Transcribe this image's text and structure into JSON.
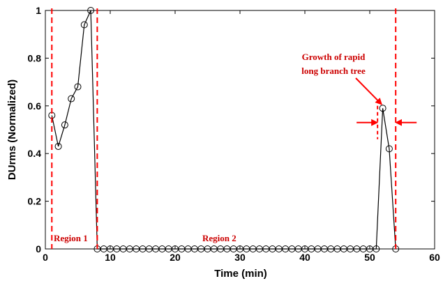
{
  "chart_data": {
    "type": "line",
    "title": "",
    "xlabel": "Time (min)",
    "ylabel": "DUrms (Normalized)",
    "xlim": [
      0,
      60
    ],
    "ylim": [
      0,
      1
    ],
    "xticks": [
      "0",
      "10",
      "20",
      "30",
      "40",
      "50",
      "60"
    ],
    "yticks": [
      "0",
      "0.2",
      "0.4",
      "0.6",
      "0.8",
      "1"
    ],
    "xtick_values": [
      0,
      10,
      20,
      30,
      40,
      50,
      60
    ],
    "ytick_values": [
      0,
      0.2,
      0.4,
      0.6,
      0.8,
      1
    ],
    "grid": false,
    "series": [
      {
        "x": [
          1,
          2,
          3,
          4,
          5,
          6,
          7,
          8,
          9,
          10,
          11,
          12,
          13,
          14,
          15,
          16,
          17,
          18,
          19,
          20,
          21,
          22,
          23,
          24,
          25,
          26,
          27,
          28,
          29,
          30,
          31,
          32,
          33,
          34,
          35,
          36,
          37,
          38,
          39,
          40,
          41,
          42,
          43,
          44,
          45,
          46,
          47,
          48,
          49,
          50,
          51,
          52,
          53,
          54
        ],
        "y": [
          0.56,
          0.43,
          0.52,
          0.63,
          0.68,
          0.94,
          1.0,
          0,
          0,
          0,
          0,
          0,
          0,
          0,
          0,
          0,
          0,
          0,
          0,
          0,
          0,
          0,
          0,
          0,
          0,
          0,
          0,
          0,
          0,
          0,
          0,
          0,
          0,
          0,
          0,
          0,
          0,
          0,
          0,
          0,
          0,
          0,
          0,
          0,
          0,
          0,
          0,
          0,
          0,
          0,
          0,
          0.59,
          0.42,
          0
        ]
      }
    ],
    "vlines": [
      1,
      8,
      54
    ],
    "short_vline": {
      "x": 51.2,
      "ymin": 0.46,
      "ymax": 0.6
    },
    "arrows_left_right": {
      "y": 0.53,
      "left_x": 51.2,
      "right_x": 54
    },
    "annotation": {
      "lines": [
        "Growth of rapid",
        "long branch tree"
      ],
      "target": {
        "x": 52,
        "y": 0.59
      }
    },
    "regions": [
      {
        "label": "Region 1",
        "x": 1
      },
      {
        "label": "Region 2",
        "x": 25
      }
    ],
    "colors": {
      "line": "#000000",
      "marker": "#000000",
      "dashed": "#ff0000",
      "annotation": "#cc0000"
    }
  }
}
